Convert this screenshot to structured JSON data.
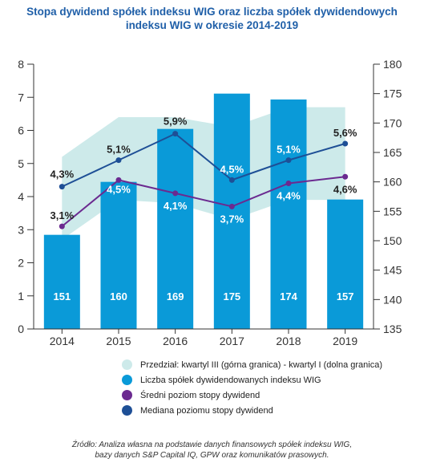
{
  "title_line1": "Stopa dywidend spółek indeksu WIG oraz liczba spółek dywidendowych",
  "title_line2": "indeksu WIG w okresie 2014-2019",
  "chart_data": {
    "type": "bar",
    "categories": [
      "2014",
      "2015",
      "2016",
      "2017",
      "2018",
      "2019"
    ],
    "left_axis": {
      "ticks": [
        "0",
        "1",
        "2",
        "3",
        "4",
        "5",
        "6",
        "7",
        "8"
      ],
      "ylim": [
        0,
        8
      ]
    },
    "right_axis": {
      "ticks": [
        "135",
        "140",
        "145",
        "150",
        "155",
        "160",
        "165",
        "170",
        "175",
        "180"
      ],
      "ylim": [
        135,
        180
      ]
    },
    "series": [
      {
        "name": "Liczba spółek dywidendowanych indeksu WIG",
        "kind": "bar",
        "axis": "right",
        "values": [
          151,
          160,
          169,
          175,
          174,
          157
        ],
        "labels": [
          "151",
          "160",
          "169",
          "175",
          "174",
          "157"
        ]
      },
      {
        "name": "Średni poziom stopy dywidend",
        "kind": "line",
        "axis": "left",
        "values": [
          3.1,
          4.5,
          4.1,
          3.7,
          4.4,
          4.6
        ],
        "labels": [
          "3,1%",
          "4,5%",
          "4,1%",
          "3,7%",
          "4,4%",
          "4,6%"
        ]
      },
      {
        "name": "Mediana poziomu stopy dywidend",
        "kind": "line",
        "axis": "left",
        "values": [
          4.3,
          5.1,
          5.9,
          4.5,
          5.1,
          5.6
        ],
        "labels": [
          "4,3%",
          "5,1%",
          "5,9%",
          "4,5%",
          "5,1%",
          "5,6%"
        ]
      },
      {
        "name": "Przedział: kwartyl III (górna granica) - kwartyl I (dolna granica)",
        "kind": "range",
        "axis": "left",
        "upper": [
          5.2,
          6.4,
          6.4,
          6.1,
          6.7,
          6.7
        ],
        "lower": [
          2.7,
          3.9,
          3.8,
          3.3,
          3.9,
          3.9
        ]
      }
    ],
    "colors": {
      "bar": "#0a9ad8",
      "mean": "#6b2a90",
      "median": "#1e4f96",
      "range": "#cdeaea",
      "axis": "#333333"
    }
  },
  "legend": [
    {
      "label": "Przedział: kwartyl III (górna granica) - kwartyl I (dolna granica)",
      "color": "#cdeaea"
    },
    {
      "label": "Liczba spółek dywidendowanych indeksu WIG",
      "color": "#0a9ad8"
    },
    {
      "label": "Średni poziom stopy dywidend",
      "color": "#6b2a90"
    },
    {
      "label": "Mediana poziomu stopy dywidend",
      "color": "#1e4f96"
    }
  ],
  "source_line1": "Źródło: Analiza własna na podstawie danych finansowych spółek indeksu WIG,",
  "source_line2": "bazy danych S&P Capital IQ, GPW oraz komunikatów prasowych."
}
